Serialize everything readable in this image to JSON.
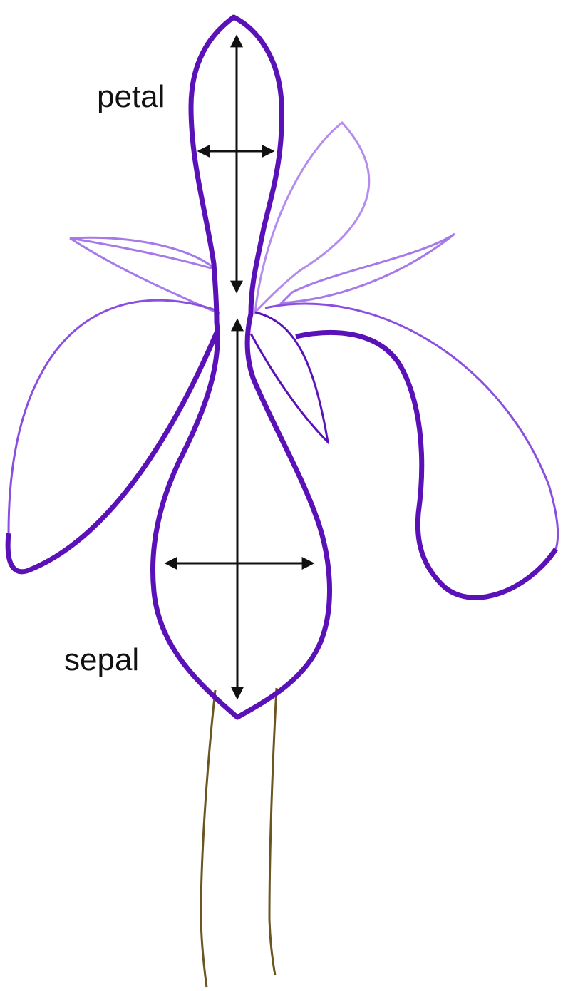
{
  "labels": {
    "petal": "petal",
    "sepal": "sepal"
  },
  "colors": {
    "dark_outline": "#5a12b8",
    "light_outline": "#a679ea",
    "mid_outline": "#8a4fe0",
    "stem": "#6b5520",
    "arrow": "#111111",
    "background": "#ffffff"
  }
}
